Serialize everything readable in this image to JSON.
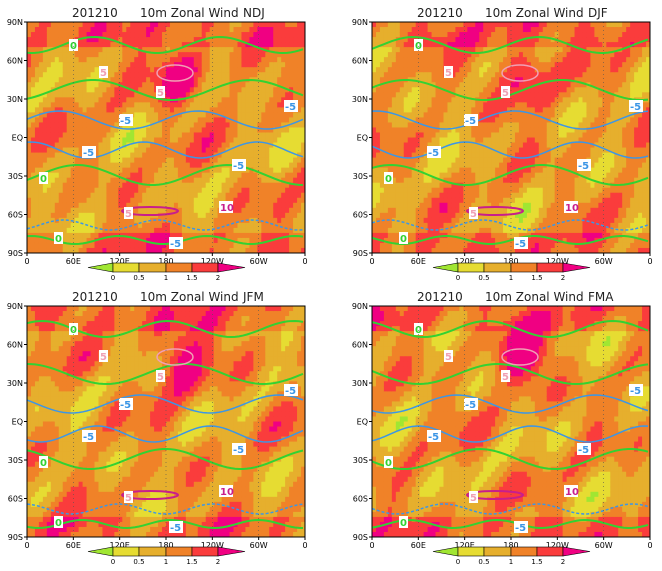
{
  "figure": {
    "panels": [
      {
        "date": "201210",
        "variable": "10m Zonal Wind",
        "season": "NDJ"
      },
      {
        "date": "201210",
        "variable": "10m Zonal Wind",
        "season": "DJF"
      },
      {
        "date": "201210",
        "variable": "10m Zonal Wind",
        "season": "JFM"
      },
      {
        "date": "201210",
        "variable": "10m Zonal Wind",
        "season": "FMA"
      }
    ],
    "lat_ticks": [
      "90N",
      "60N",
      "30N",
      "EQ",
      "30S",
      "60S",
      "90S"
    ],
    "lon_ticks": [
      "0",
      "60E",
      "120E",
      "180",
      "120W",
      "60W",
      "0"
    ],
    "colorbar": {
      "labels": [
        "0",
        "0.5",
        "1",
        "1.5",
        "2"
      ],
      "colors": [
        "#a0e632",
        "#e6dc32",
        "#e6af2d",
        "#f08228",
        "#fa3c3c",
        "#f00082"
      ]
    },
    "contour_labels": [
      "0",
      "5",
      "-5",
      "10"
    ],
    "contour_colors": {
      "zero": "#32d232",
      "negative": "#3c96e6",
      "positive": "#f0a0b4",
      "strong": "#c81e8c"
    }
  }
}
